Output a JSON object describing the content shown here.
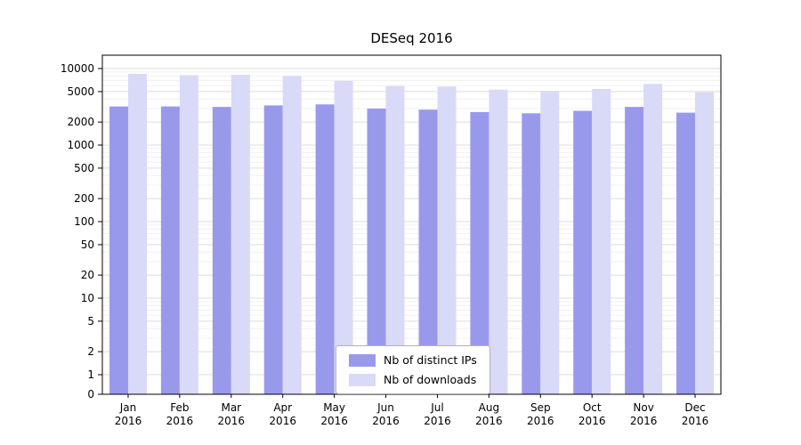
{
  "chart_data": {
    "type": "bar",
    "title": "DESeq 2016",
    "categories": [
      "Jan",
      "Feb",
      "Mar",
      "Apr",
      "May",
      "Jun",
      "Jul",
      "Aug",
      "Sep",
      "Oct",
      "Nov",
      "Dec"
    ],
    "year": "2016",
    "series": [
      {
        "name": "Nb of distinct IPs",
        "color": "#9999ec",
        "values": [
          3200,
          3200,
          3150,
          3300,
          3400,
          3000,
          2900,
          2700,
          2600,
          2800,
          3150,
          2650
        ]
      },
      {
        "name": "Nb of downloads",
        "color": "#d9d9f8",
        "values": [
          8500,
          8200,
          8300,
          8000,
          6900,
          5900,
          5800,
          5300,
          5100,
          5400,
          6300,
          4900
        ]
      }
    ],
    "yticks": [
      0,
      1,
      2,
      5,
      10,
      20,
      50,
      100,
      200,
      500,
      1000,
      2000,
      5000,
      10000
    ],
    "yscale": "symlog",
    "ylim": [
      0,
      10000
    ],
    "grid": true,
    "legend_position": "lower center"
  }
}
